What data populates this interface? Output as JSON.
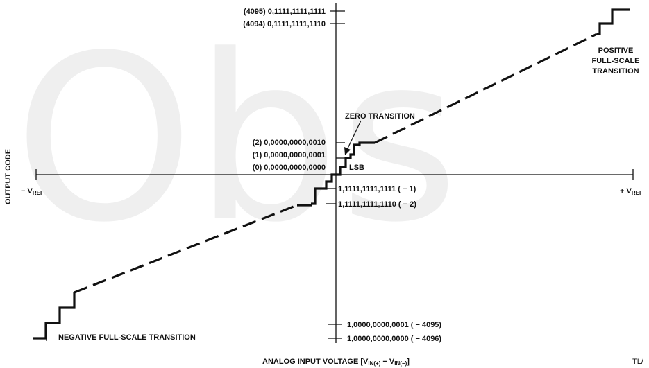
{
  "watermark": "Obs",
  "axes": {
    "x_title_prefix": "ANALOG INPUT VOLTAGE [V",
    "x_title_sub1": "IN(+)",
    "x_title_mid": " − V",
    "x_title_sub2": "IN(−)",
    "x_title_suffix": "]",
    "y_title": "OUTPUT CODE",
    "neg_ref_prefix": "− V",
    "pos_ref_prefix": "+ V",
    "ref_sub": "REF"
  },
  "codes": {
    "c4095": "(4095) 0,1111,1111,1111",
    "c4094": "(4094) 0,1111,1111,1110",
    "c2": "(2) 0,0000,0000,0010",
    "c1": "(1) 0,0000,0000,0001",
    "c0": "(0) 0,0000,0000,0000",
    "cm1": "1,1111,1111,1111 ( − 1)",
    "cm2": "1,1111,1111,1110 ( − 2)",
    "cm4095": "1,0000,0000,0001 ( − 4095)",
    "cm4096": "1,0000,0000,0000 ( − 4096)"
  },
  "annotations": {
    "zero_transition": "ZERO TRANSITION",
    "lsb": "LSB",
    "positive_line1": "POSITIVE",
    "positive_line2": "FULL-SCALE",
    "positive_line3": "TRANSITION",
    "negative": "NEGATIVE FULL-SCALE TRANSITION"
  },
  "figure_ref": "TL/"
}
